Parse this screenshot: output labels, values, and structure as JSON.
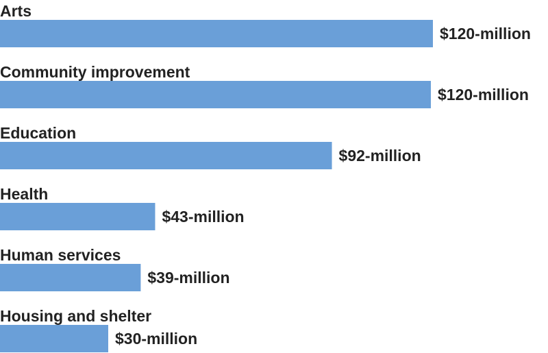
{
  "colors": {
    "bar": "#6a9fd8",
    "text": "#222222"
  },
  "chart_data": {
    "type": "bar",
    "orientation": "horizontal",
    "categories": [
      "Arts",
      "Community improvement",
      "Education",
      "Health",
      "Human services",
      "Housing and shelter"
    ],
    "values": [
      120,
      120,
      92,
      43,
      39,
      30
    ],
    "value_labels": [
      "$120-million",
      "$120-million",
      "$92-million",
      "$43-million",
      "$39-million",
      "$30-million"
    ],
    "title": "",
    "xlabel": "",
    "ylabel": "",
    "unit": "million USD",
    "xlim": [
      0,
      120
    ],
    "grid": false,
    "legend": "none"
  }
}
